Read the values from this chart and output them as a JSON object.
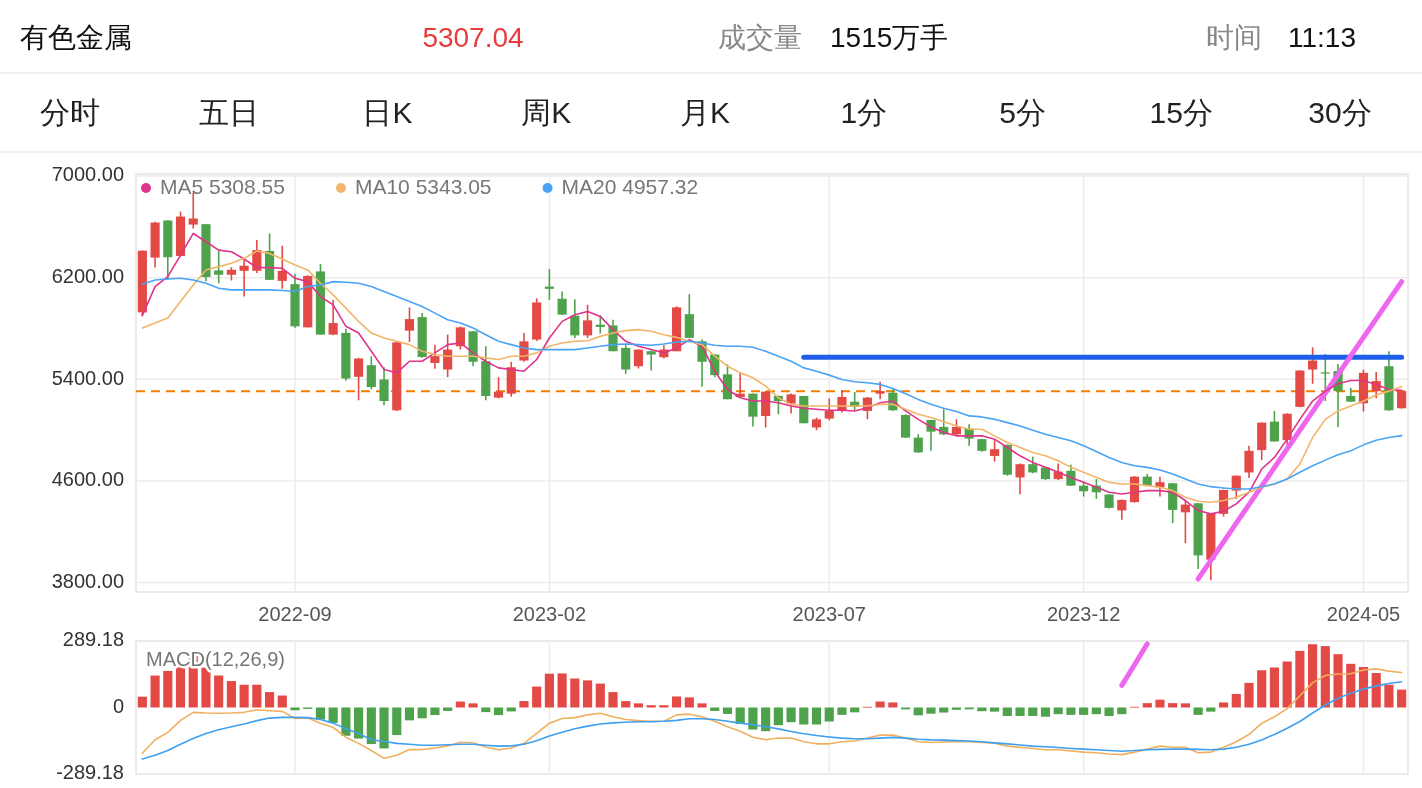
{
  "chart_data": [
    {
      "type": "other",
      "title": "有色金属",
      "annotations": [
        "5307.04",
        "成交量",
        "1515万手",
        "时间",
        "11:13"
      ],
      "categories": [
        "分时",
        "五日",
        "日K",
        "周K",
        "月K",
        "1分",
        "5分",
        "15分",
        "30分"
      ]
    },
    {
      "type": "candlestick",
      "legend": "top left",
      "grid": true,
      "categories": [
        null,
        null,
        null,
        null,
        null,
        null,
        null,
        null,
        null,
        null,
        null,
        null,
        "2022-09",
        null,
        null,
        null,
        null,
        null,
        null,
        null,
        null,
        null,
        null,
        null,
        null,
        null,
        null,
        null,
        null,
        null,
        null,
        null,
        "2023-02",
        null,
        null,
        null,
        null,
        null,
        null,
        null,
        null,
        null,
        null,
        null,
        null,
        null,
        null,
        null,
        null,
        null,
        null,
        null,
        null,
        null,
        "2023-07",
        null,
        null,
        null,
        null,
        null,
        null,
        null,
        null,
        null,
        null,
        null,
        null,
        null,
        null,
        null,
        null,
        null,
        null,
        null,
        "2023-12",
        null,
        null,
        null,
        null,
        null,
        null,
        null,
        null,
        null,
        null,
        null,
        null,
        null,
        null,
        null,
        null,
        null,
        null,
        null,
        null,
        null,
        "2024-05",
        null,
        null,
        null
      ],
      "ylim": [
        3726,
        7016
      ],
      "yticks": [
        {
          "value": 7000,
          "label": "7000.00"
        },
        {
          "value": 6200,
          "label": "6200.00"
        },
        {
          "value": 5400,
          "label": "5400.00"
        },
        {
          "value": 4600,
          "label": "4600.00"
        },
        {
          "value": 3800,
          "label": "3800.00"
        }
      ],
      "ref_lines": [
        {
          "axis": "y",
          "value": 5307.04,
          "color": "#f57c00",
          "line_style": "dashed"
        }
      ],
      "ohlc": [
        [
          5927,
          6415,
          5897,
          6412
        ],
        [
          6358,
          6641,
          6280,
          6634
        ],
        [
          6650,
          6654,
          6184,
          6361
        ],
        [
          6371,
          6720,
          6366,
          6681
        ],
        [
          6618,
          6870,
          6587,
          6666
        ],
        [
          6621,
          6621,
          6171,
          6205
        ],
        [
          6257,
          6412,
          6156,
          6223
        ],
        [
          6223,
          6282,
          6178,
          6262
        ],
        [
          6254,
          6347,
          6052,
          6294
        ],
        [
          6254,
          6496,
          6236,
          6417
        ],
        [
          6410,
          6548,
          6183,
          6183
        ],
        [
          6175,
          6452,
          6113,
          6254
        ],
        [
          6149,
          6231,
          5805,
          5817
        ],
        [
          5809,
          6218,
          5809,
          6214
        ],
        [
          6249,
          6308,
          5752,
          5752
        ],
        [
          5752,
          6026,
          5746,
          5843
        ],
        [
          5765,
          5798,
          5391,
          5406
        ],
        [
          5420,
          5569,
          5235,
          5564
        ],
        [
          5511,
          5582,
          5321,
          5339
        ],
        [
          5399,
          5495,
          5195,
          5229
        ],
        [
          5156,
          5696,
          5151,
          5691
        ],
        [
          5783,
          5966,
          5694,
          5874
        ],
        [
          5890,
          5922,
          5569,
          5576
        ],
        [
          5529,
          5673,
          5483,
          5582
        ],
        [
          5477,
          5752,
          5417,
          5634
        ],
        [
          5660,
          5815,
          5634,
          5809
        ],
        [
          5778,
          5781,
          5503,
          5538
        ],
        [
          5543,
          5660,
          5235,
          5269
        ],
        [
          5256,
          5417,
          5250,
          5303
        ],
        [
          5287,
          5538,
          5263,
          5495
        ],
        [
          5548,
          5765,
          5538,
          5699
        ],
        [
          5713,
          6038,
          5701,
          6005
        ],
        [
          6130,
          6268,
          6026,
          6112
        ],
        [
          6034,
          6091,
          5909,
          5909
        ],
        [
          5901,
          6031,
          5726,
          5746
        ],
        [
          5746,
          5987,
          5726,
          5864
        ],
        [
          5830,
          5904,
          5760,
          5812
        ],
        [
          5824,
          5869,
          5621,
          5621
        ],
        [
          5647,
          5679,
          5443,
          5477
        ],
        [
          5503,
          5634,
          5485,
          5634
        ],
        [
          5621,
          5626,
          5469,
          5595
        ],
        [
          5574,
          5668,
          5564,
          5634
        ],
        [
          5621,
          5974,
          5621,
          5966
        ],
        [
          5913,
          6071,
          5726,
          5726
        ],
        [
          5699,
          5713,
          5342,
          5538
        ],
        [
          5595,
          5598,
          5417,
          5433
        ],
        [
          5439,
          5517,
          5243,
          5243
        ],
        [
          5261,
          5451,
          5260,
          5287
        ],
        [
          5287,
          5289,
          5028,
          5106
        ],
        [
          5111,
          5308,
          5021,
          5303
        ],
        [
          5269,
          5272,
          5125,
          5229
        ],
        [
          5209,
          5289,
          5130,
          5281
        ],
        [
          5269,
          5269,
          5054,
          5054
        ],
        [
          5021,
          5099,
          4999,
          5085
        ],
        [
          5091,
          5250,
          5077,
          5151
        ],
        [
          5156,
          5316,
          5139,
          5261
        ],
        [
          5224,
          5300,
          5156,
          5183
        ],
        [
          5151,
          5261,
          5085,
          5256
        ],
        [
          5287,
          5381,
          5243,
          5307
        ],
        [
          5295,
          5328,
          5153,
          5156
        ],
        [
          5119,
          5125,
          4938,
          4941
        ],
        [
          4941,
          4967,
          4821,
          4825
        ],
        [
          5080,
          5082,
          4837,
          4988
        ],
        [
          5025,
          5164,
          4961,
          4967
        ],
        [
          4967,
          5085,
          4961,
          5025
        ],
        [
          5012,
          5047,
          4877,
          4933
        ],
        [
          4929,
          4932,
          4830,
          4837
        ],
        [
          4797,
          4921,
          4752,
          4850
        ],
        [
          4884,
          4888,
          4642,
          4649
        ],
        [
          4628,
          4737,
          4496,
          4732
        ],
        [
          4732,
          4792,
          4661,
          4667
        ],
        [
          4706,
          4709,
          4608,
          4615
        ],
        [
          4615,
          4737,
          4608,
          4674
        ],
        [
          4680,
          4727,
          4560,
          4563
        ],
        [
          4563,
          4596,
          4477,
          4519
        ],
        [
          4563,
          4615,
          4459,
          4511
        ],
        [
          4493,
          4496,
          4383,
          4388
        ],
        [
          4368,
          4455,
          4294,
          4451
        ],
        [
          4433,
          4638,
          4430,
          4634
        ],
        [
          4634,
          4655,
          4560,
          4563
        ],
        [
          4550,
          4634,
          4477,
          4590
        ],
        [
          4582,
          4585,
          4268,
          4372
        ],
        [
          4353,
          4445,
          4110,
          4414
        ],
        [
          4424,
          4427,
          3908,
          4014
        ],
        [
          3980,
          4344,
          3818,
          4341
        ],
        [
          4341,
          4532,
          4320,
          4529
        ],
        [
          4524,
          4644,
          4459,
          4641
        ],
        [
          4667,
          4877,
          4623,
          4837
        ],
        [
          4843,
          5062,
          4764,
          5059
        ],
        [
          5067,
          5151,
          4908,
          4911
        ],
        [
          4921,
          5132,
          4877,
          5129
        ],
        [
          5183,
          5472,
          5181,
          5469
        ],
        [
          5477,
          5652,
          5365,
          5548
        ],
        [
          5455,
          5600,
          5229,
          5451
        ],
        [
          5465,
          5521,
          5025,
          5307
        ],
        [
          5269,
          5333,
          5221,
          5224
        ],
        [
          5211,
          5477,
          5146,
          5451
        ],
        [
          5307,
          5457,
          5250,
          5386
        ],
        [
          5503,
          5621,
          5153,
          5156
        ],
        [
          5172,
          5310,
          5170,
          5307
        ]
      ],
      "colors": [
        "#e34a45",
        "#e34a45",
        "#4ea24b",
        "#e34a45",
        "#e34a45",
        "#4ea24b",
        "#4ea24b",
        "#e34a45",
        "#e34a45",
        "#e34a45",
        "#4ea24b",
        "#e34a45",
        "#4ea24b",
        "#e34a45",
        "#4ea24b",
        "#e34a45",
        "#4ea24b",
        "#e34a45",
        "#4ea24b",
        "#4ea24b",
        "#e34a45",
        "#e34a45",
        "#4ea24b",
        "#e34a45",
        "#e34a45",
        "#e34a45",
        "#4ea24b",
        "#4ea24b",
        "#e34a45",
        "#e34a45",
        "#e34a45",
        "#e34a45",
        "#4ea24b",
        "#4ea24b",
        "#4ea24b",
        "#e34a45",
        "#4ea24b",
        "#4ea24b",
        "#4ea24b",
        "#e34a45",
        "#4ea24b",
        "#e34a45",
        "#e34a45",
        "#4ea24b",
        "#4ea24b",
        "#4ea24b",
        "#4ea24b",
        "#e34a45",
        "#4ea24b",
        "#e34a45",
        "#4ea24b",
        "#e34a45",
        "#4ea24b",
        "#e34a45",
        "#e34a45",
        "#e34a45",
        "#4ea24b",
        "#e34a45",
        "#e34a45",
        "#4ea24b",
        "#4ea24b",
        "#4ea24b",
        "#4ea24b",
        "#4ea24b",
        "#e34a45",
        "#4ea24b",
        "#4ea24b",
        "#e34a45",
        "#4ea24b",
        "#e34a45",
        "#4ea24b",
        "#4ea24b",
        "#e34a45",
        "#4ea24b",
        "#4ea24b",
        "#4ea24b",
        "#4ea24b",
        "#e34a45",
        "#e34a45",
        "#4ea24b",
        "#e34a45",
        "#4ea24b",
        "#e34a45",
        "#4ea24b",
        "#e34a45",
        "#e34a45",
        "#e34a45",
        "#e34a45",
        "#e34a45",
        "#4ea24b",
        "#e34a45",
        "#e34a45",
        "#e34a45",
        "#4ea24b",
        "#4ea24b",
        "#4ea24b",
        "#e34a45",
        "#e34a45",
        "#4ea24b",
        "#e34a45"
      ],
      "series": [
        {
          "type": "line",
          "name": "MA5 5308.55",
          "color": "#e0338a",
          "values": [
            5903,
            6130,
            6208,
            6378,
            6548,
            6483,
            6417,
            6404,
            6347,
            6279,
            6279,
            6274,
            6195,
            6169,
            6052,
            5986,
            5817,
            5764,
            5621,
            5477,
            5451,
            5542,
            5542,
            5608,
            5673,
            5686,
            5608,
            5542,
            5490,
            5477,
            5464,
            5556,
            5725,
            5856,
            5908,
            5934,
            5895,
            5791,
            5699,
            5660,
            5634,
            5608,
            5647,
            5712,
            5660,
            5464,
            5320,
            5255,
            5229,
            5229,
            5216,
            5190,
            5172,
            5164,
            5156,
            5156,
            5151,
            5177,
            5216,
            5229,
            5151,
            5085,
            5025,
            4981,
            4955,
            4955,
            4955,
            4929,
            4863,
            4798,
            4746,
            4707,
            4668,
            4628,
            4589,
            4550,
            4511,
            4498,
            4511,
            4524,
            4524,
            4511,
            4446,
            4367,
            4341,
            4362,
            4420,
            4511,
            4694,
            4785,
            4929,
            5085,
            5229,
            5307,
            5365,
            5391,
            5391,
            5360,
            5320,
            5313
          ]
        },
        {
          "type": "line",
          "name": "MA10 5343.05",
          "color": "#f2b56b",
          "values": [
            5804,
            5843,
            5882,
            6013,
            6143,
            6261,
            6287,
            6313,
            6352,
            6410,
            6391,
            6347,
            6300,
            6261,
            6156,
            6065,
            5960,
            5856,
            5764,
            5725,
            5699,
            5673,
            5621,
            5595,
            5582,
            5582,
            5582,
            5569,
            5556,
            5582,
            5582,
            5608,
            5660,
            5686,
            5699,
            5704,
            5738,
            5764,
            5783,
            5791,
            5778,
            5751,
            5730,
            5699,
            5673,
            5582,
            5503,
            5451,
            5412,
            5347,
            5255,
            5203,
            5190,
            5190,
            5190,
            5190,
            5190,
            5190,
            5203,
            5203,
            5164,
            5125,
            5099,
            5067,
            5033,
            5007,
            5007,
            4955,
            4903,
            4863,
            4824,
            4798,
            4759,
            4707,
            4668,
            4628,
            4589,
            4576,
            4576,
            4563,
            4550,
            4524,
            4472,
            4440,
            4432,
            4446,
            4472,
            4511,
            4550,
            4576,
            4615,
            4733,
            4942,
            5085,
            5151,
            5190,
            5229,
            5276,
            5307,
            5343
          ]
        },
        {
          "type": "line",
          "name": "MA20 4957.32",
          "color": "#4aa3f5",
          "values": [
            6148,
            6182,
            6190,
            6195,
            6182,
            6156,
            6117,
            6104,
            6104,
            6104,
            6104,
            6099,
            6091,
            6130,
            6143,
            6169,
            6164,
            6156,
            6130,
            6091,
            6052,
            6013,
            5973,
            5921,
            5869,
            5843,
            5804,
            5751,
            5699,
            5673,
            5647,
            5634,
            5634,
            5634,
            5634,
            5647,
            5660,
            5673,
            5678,
            5673,
            5668,
            5678,
            5694,
            5699,
            5686,
            5668,
            5660,
            5660,
            5652,
            5621,
            5582,
            5542,
            5490,
            5464,
            5433,
            5399,
            5381,
            5373,
            5360,
            5328,
            5287,
            5242,
            5203,
            5172,
            5146,
            5112,
            5104,
            5085,
            5059,
            5033,
            4999,
            4968,
            4942,
            4916,
            4877,
            4832,
            4785,
            4746,
            4720,
            4707,
            4686,
            4655,
            4615,
            4576,
            4555,
            4545,
            4537,
            4537,
            4555,
            4576,
            4615,
            4668,
            4720,
            4764,
            4806,
            4837,
            4884,
            4921,
            4942,
            4957
          ]
        },
        {
          "type": "line",
          "color": "#1f5ee8",
          "values": [
            null,
            null,
            null,
            null,
            null,
            null,
            null,
            null,
            null,
            null,
            null,
            null,
            null,
            null,
            null,
            null,
            null,
            null,
            null,
            null,
            null,
            null,
            null,
            null,
            null,
            null,
            null,
            null,
            null,
            null,
            null,
            null,
            null,
            null,
            null,
            null,
            null,
            null,
            null,
            null,
            null,
            null,
            null,
            null,
            null,
            null,
            null,
            null,
            null,
            null,
            null,
            null,
            5574,
            5574,
            5574,
            5574,
            5574,
            5574,
            5574,
            5574,
            5574,
            5574,
            5574,
            5574,
            5574,
            5574,
            5574,
            5574,
            5574,
            5574,
            5574,
            5574,
            5574,
            5574,
            5574,
            5574,
            5574,
            5574,
            5574,
            5574,
            5574,
            5574,
            5574,
            5574,
            5574,
            5574,
            5574,
            5574,
            5574,
            5574,
            5574,
            5574,
            5574,
            5574,
            5574,
            5574,
            5574,
            5574,
            5574,
            5574
          ]
        },
        {
          "type": "line",
          "color": "#ee66ee",
          "values": [
            null,
            null,
            null,
            null,
            null,
            null,
            null,
            null,
            null,
            null,
            null,
            null,
            null,
            null,
            null,
            null,
            null,
            null,
            null,
            null,
            null,
            null,
            null,
            null,
            null,
            null,
            null,
            null,
            null,
            null,
            null,
            null,
            null,
            null,
            null,
            null,
            null,
            null,
            null,
            null,
            null,
            null,
            null,
            null,
            null,
            null,
            null,
            null,
            null,
            null,
            null,
            null,
            null,
            null,
            null,
            null,
            null,
            null,
            null,
            null,
            null,
            null,
            null,
            null,
            null,
            null,
            null,
            null,
            null,
            null,
            null,
            null,
            null,
            null,
            null,
            null,
            null,
            null,
            null,
            null,
            null,
            null,
            null,
            3829,
            3975,
            4121,
            4268,
            4414,
            4560,
            4706,
            4853,
            4999,
            5145,
            5291,
            5438,
            5584,
            5730,
            5876,
            6023,
            6169
          ]
        }
      ]
    },
    {
      "type": "bar",
      "title": "MACD(12,26,9)",
      "grid": "x",
      "tick_labels": "y",
      "categories": [
        null,
        null,
        null,
        null,
        null,
        null,
        null,
        null,
        null,
        null,
        null,
        null,
        "2022-09",
        null,
        null,
        null,
        null,
        null,
        null,
        null,
        null,
        null,
        null,
        null,
        null,
        null,
        null,
        null,
        null,
        null,
        null,
        null,
        "2023-02",
        null,
        null,
        null,
        null,
        null,
        null,
        null,
        null,
        null,
        null,
        null,
        null,
        null,
        null,
        null,
        null,
        null,
        null,
        null,
        null,
        null,
        "2023-07",
        null,
        null,
        null,
        null,
        null,
        null,
        null,
        null,
        null,
        null,
        null,
        null,
        null,
        null,
        null,
        null,
        null,
        null,
        null,
        "2023-12",
        null,
        null,
        null,
        null,
        null,
        null,
        null,
        null,
        null,
        null,
        null,
        null,
        null,
        null,
        null,
        null,
        null,
        null,
        null,
        null,
        null,
        "2024-05",
        null,
        null,
        null
      ],
      "ylim": [
        -289.18,
        289.18
      ],
      "yticks": [
        289.18,
        0,
        -289.18
      ],
      "values": [
        47,
        139,
        159,
        194,
        226,
        173,
        139,
        115,
        99,
        99,
        67,
        52,
        -12,
        -6,
        -52,
        -67,
        -123,
        -135,
        -159,
        -178,
        -120,
        -56,
        -47,
        -33,
        -15,
        26,
        18,
        -20,
        -33,
        -17,
        28,
        91,
        147,
        148,
        126,
        118,
        104,
        67,
        28,
        18,
        10,
        10,
        48,
        44,
        18,
        -15,
        -28,
        -72,
        -96,
        -103,
        -77,
        -64,
        -74,
        -74,
        -61,
        -32,
        -21,
        3,
        26,
        22,
        -8,
        -34,
        -27,
        -22,
        -10,
        -8,
        -16,
        -18,
        -37,
        -37,
        -37,
        -40,
        -29,
        -32,
        -32,
        -29,
        -37,
        -29,
        3,
        19,
        34,
        19,
        18,
        -32,
        -18,
        22,
        59,
        107,
        162,
        174,
        200,
        246,
        275,
        267,
        232,
        190,
        176,
        150,
        99,
        78
      ],
      "colors": [
        "#e34a45",
        "#e34a45",
        "#e34a45",
        "#e34a45",
        "#e34a45",
        "#e34a45",
        "#e34a45",
        "#e34a45",
        "#e34a45",
        "#e34a45",
        "#e34a45",
        "#e34a45",
        "#4ea24b",
        "#4ea24b",
        "#4ea24b",
        "#4ea24b",
        "#4ea24b",
        "#4ea24b",
        "#4ea24b",
        "#4ea24b",
        "#4ea24b",
        "#4ea24b",
        "#4ea24b",
        "#4ea24b",
        "#4ea24b",
        "#e34a45",
        "#e34a45",
        "#4ea24b",
        "#4ea24b",
        "#4ea24b",
        "#e34a45",
        "#e34a45",
        "#e34a45",
        "#e34a45",
        "#e34a45",
        "#e34a45",
        "#e34a45",
        "#e34a45",
        "#e34a45",
        "#e34a45",
        "#e34a45",
        "#e34a45",
        "#e34a45",
        "#e34a45",
        "#e34a45",
        "#4ea24b",
        "#4ea24b",
        "#4ea24b",
        "#4ea24b",
        "#4ea24b",
        "#4ea24b",
        "#4ea24b",
        "#4ea24b",
        "#4ea24b",
        "#4ea24b",
        "#4ea24b",
        "#4ea24b",
        "#e34a45",
        "#e34a45",
        "#e34a45",
        "#4ea24b",
        "#4ea24b",
        "#4ea24b",
        "#4ea24b",
        "#4ea24b",
        "#4ea24b",
        "#4ea24b",
        "#4ea24b",
        "#4ea24b",
        "#4ea24b",
        "#4ea24b",
        "#4ea24b",
        "#4ea24b",
        "#4ea24b",
        "#4ea24b",
        "#4ea24b",
        "#4ea24b",
        "#4ea24b",
        "#e34a45",
        "#e34a45",
        "#e34a45",
        "#e34a45",
        "#e34a45",
        "#4ea24b",
        "#4ea24b",
        "#e34a45",
        "#e34a45",
        "#e34a45",
        "#e34a45",
        "#e34a45",
        "#e34a45",
        "#e34a45",
        "#e34a45",
        "#e34a45",
        "#e34a45",
        "#e34a45",
        "#e34a45",
        "#e34a45",
        "#e34a45",
        "#e34a45"
      ],
      "series": [
        {
          "type": "line",
          "color": "#f0b060",
          "values": [
            -199,
            -140,
            -108,
            -56,
            -21,
            -24,
            -25,
            -24,
            -21,
            -10,
            -14,
            -17,
            -48,
            -46,
            -68,
            -87,
            -129,
            -156,
            -187,
            -221,
            -208,
            -183,
            -183,
            -176,
            -167,
            -151,
            -153,
            -172,
            -184,
            -176,
            -156,
            -113,
            -68,
            -48,
            -44,
            -32,
            -25,
            -40,
            -52,
            -57,
            -60,
            -60,
            -32,
            -29,
            -40,
            -60,
            -84,
            -103,
            -129,
            -140,
            -133,
            -133,
            -149,
            -158,
            -158,
            -149,
            -146,
            -133,
            -120,
            -120,
            -133,
            -149,
            -152,
            -150,
            -149,
            -149,
            -152,
            -155,
            -168,
            -173,
            -178,
            -184,
            -184,
            -189,
            -194,
            -197,
            -202,
            -205,
            -194,
            -181,
            -168,
            -173,
            -173,
            -197,
            -194,
            -173,
            -149,
            -117,
            -69,
            -40,
            -5,
            51,
            107,
            139,
            146,
            147,
            163,
            168,
            158,
            152
          ]
        },
        {
          "type": "line",
          "color": "#3ea0f0",
          "values": [
            -224,
            -208,
            -187,
            -160,
            -135,
            -113,
            -97,
            -84,
            -72,
            -57,
            -46,
            -43,
            -43,
            -44,
            -52,
            -68,
            -92,
            -113,
            -140,
            -148,
            -156,
            -160,
            -164,
            -164,
            -162,
            -160,
            -160,
            -164,
            -168,
            -167,
            -160,
            -145,
            -124,
            -108,
            -92,
            -81,
            -72,
            -67,
            -64,
            -62,
            -62,
            -60,
            -56,
            -49,
            -49,
            -52,
            -60,
            -68,
            -75,
            -84,
            -93,
            -104,
            -114,
            -122,
            -128,
            -133,
            -136,
            -136,
            -133,
            -130,
            -133,
            -138,
            -141,
            -142,
            -144,
            -146,
            -149,
            -154,
            -158,
            -163,
            -168,
            -171,
            -174,
            -178,
            -181,
            -184,
            -187,
            -190,
            -187,
            -184,
            -182,
            -181,
            -181,
            -182,
            -184,
            -181,
            -173,
            -160,
            -141,
            -117,
            -90,
            -61,
            -24,
            11,
            40,
            62,
            80,
            94,
            104,
            112
          ]
        },
        {
          "type": "line",
          "color": "#ee66ee",
          "values": [
            null,
            null,
            null,
            null,
            null,
            null,
            null,
            null,
            null,
            null,
            null,
            null,
            null,
            null,
            null,
            null,
            null,
            null,
            null,
            null,
            null,
            null,
            null,
            null,
            null,
            null,
            null,
            null,
            null,
            null,
            null,
            null,
            null,
            null,
            null,
            null,
            null,
            null,
            null,
            null,
            null,
            null,
            null,
            null,
            null,
            null,
            null,
            null,
            null,
            null,
            null,
            null,
            null,
            null,
            null,
            null,
            null,
            null,
            null,
            null,
            null,
            null,
            null,
            null,
            null,
            null,
            null,
            null,
            null,
            null,
            null,
            null,
            null,
            null,
            null,
            null,
            null,
            96,
            186,
            277,
            null,
            null,
            null,
            null,
            null,
            null,
            null,
            null,
            null,
            null,
            null,
            null,
            null,
            null,
            null,
            null,
            null,
            null,
            null,
            null
          ]
        }
      ]
    }
  ]
}
